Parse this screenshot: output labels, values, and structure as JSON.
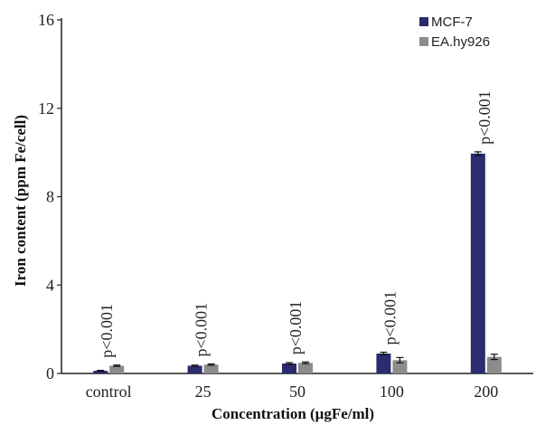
{
  "chart_data": {
    "type": "bar",
    "title": "",
    "xlabel": "Concentration (μgFe/ml)",
    "ylabel": "Iron content (ppm Fe/cell)",
    "categories": [
      "control",
      "25",
      "50",
      "100",
      "200"
    ],
    "ylim": [
      0,
      16
    ],
    "yticks": [
      0,
      4,
      8,
      12,
      16
    ],
    "grid": false,
    "legend_position": "top-right",
    "series": [
      {
        "name": "MCF-7",
        "color": "#2b2b6e",
        "values": [
          0.12,
          0.35,
          0.45,
          0.9,
          9.95
        ],
        "errors": [
          0.02,
          0.03,
          0.04,
          0.06,
          0.08
        ]
      },
      {
        "name": "EA.hy926",
        "color": "#8c8c8c",
        "values": [
          0.35,
          0.4,
          0.48,
          0.6,
          0.75
        ],
        "errors": [
          0.03,
          0.03,
          0.04,
          0.12,
          0.12
        ]
      }
    ],
    "annotations": [
      "p<0.001",
      "p<0.001",
      "p<0.001",
      "p<0.001",
      "p<0.001"
    ]
  }
}
